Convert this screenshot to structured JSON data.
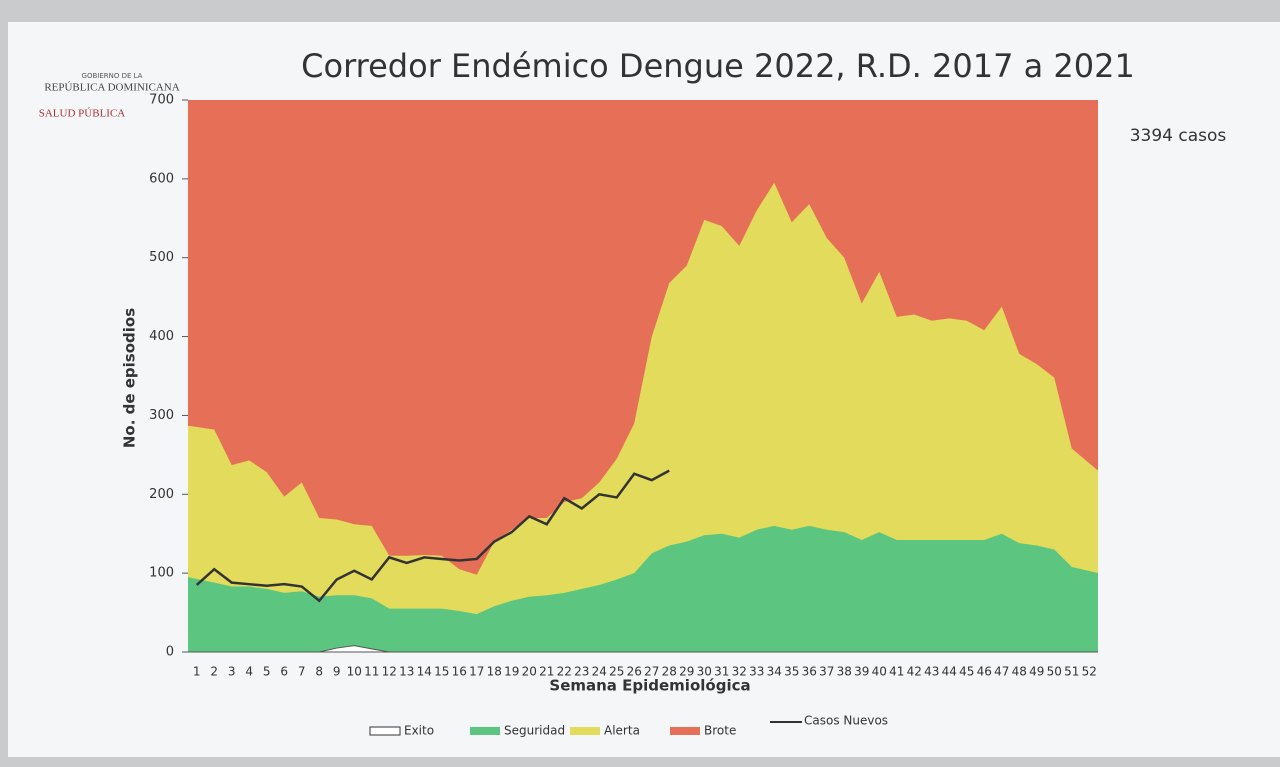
{
  "logo": {
    "line1": "GOBIERNO DE LA",
    "line2": "REPÚBLICA DOMINICANA",
    "line3": "SALUD PÚBLICA"
  },
  "chart_data": {
    "type": "area",
    "title": "Corredor Endémico Dengue 2022, R.D. 2017 a 2021",
    "annotation": "3394 casos",
    "x_label": "Semana Epidemiológica",
    "y_label": "No. de episodios",
    "categories": [
      "1",
      "2",
      "3",
      "4",
      "5",
      "6",
      "7",
      "8",
      "9",
      "10",
      "11",
      "12",
      "13",
      "14",
      "15",
      "16",
      "17",
      "18",
      "19",
      "20",
      "21",
      "22",
      "23",
      "24",
      "25",
      "26",
      "27",
      "28",
      "29",
      "30",
      "31",
      "32",
      "33",
      "34",
      "35",
      "36",
      "37",
      "38",
      "39",
      "40",
      "41",
      "42",
      "43",
      "44",
      "45",
      "46",
      "47",
      "48",
      "49",
      "50",
      "51",
      "52"
    ],
    "ylim": [
      0,
      700
    ],
    "yticks": [
      0,
      100,
      200,
      300,
      400,
      500,
      600,
      700
    ],
    "series": [
      {
        "name": "Brote",
        "color": "#e66f57",
        "style": "area",
        "values": [
          700,
          700,
          700,
          700,
          700,
          700,
          700,
          700,
          700,
          700,
          700,
          700,
          700,
          700,
          700,
          700,
          700,
          700,
          700,
          700,
          700,
          700,
          700,
          700,
          700,
          700,
          700,
          700,
          700,
          700,
          700,
          700,
          700,
          700,
          700,
          700,
          700,
          700,
          700,
          700,
          700,
          700,
          700,
          700,
          700,
          700,
          700,
          700,
          700,
          700,
          700,
          700
        ]
      },
      {
        "name": "Alerta",
        "color": "#e2db5c",
        "style": "area",
        "values": [
          287,
          282,
          237,
          243,
          228,
          197,
          215,
          170,
          168,
          162,
          160,
          122,
          122,
          123,
          122,
          105,
          98,
          140,
          155,
          170,
          170,
          190,
          195,
          215,
          245,
          290,
          400,
          468,
          490,
          548,
          540,
          515,
          560,
          595,
          545,
          568,
          525,
          500,
          442,
          482,
          425,
          428,
          420,
          423,
          420,
          408,
          438,
          378,
          365,
          348,
          258,
          230
        ]
      },
      {
        "name": "Seguridad",
        "color": "#5cc680",
        "style": "area",
        "values": [
          95,
          88,
          83,
          83,
          80,
          75,
          77,
          70,
          72,
          72,
          68,
          55,
          55,
          55,
          55,
          52,
          48,
          58,
          65,
          70,
          72,
          75,
          80,
          85,
          92,
          100,
          125,
          135,
          140,
          148,
          150,
          145,
          155,
          160,
          155,
          160,
          155,
          152,
          142,
          152,
          142,
          142,
          142,
          142,
          142,
          142,
          150,
          138,
          135,
          130,
          108,
          100
        ]
      },
      {
        "name": "Exito",
        "color": "#ffffff",
        "style": "area",
        "values": [
          0,
          0,
          0,
          0,
          0,
          0,
          0,
          0,
          5,
          8,
          4,
          0,
          0,
          0,
          0,
          0,
          0,
          0,
          0,
          0,
          0,
          0,
          0,
          0,
          0,
          0,
          0,
          0,
          0,
          0,
          0,
          0,
          0,
          0,
          0,
          0,
          0,
          0,
          0,
          0,
          0,
          0,
          0,
          0,
          0,
          0,
          0,
          0,
          0,
          0,
          0,
          0
        ]
      },
      {
        "name": "Casos Nuevos",
        "color": "#333333",
        "style": "line",
        "values": [
          85,
          105,
          88,
          86,
          84,
          86,
          83,
          65,
          92,
          103,
          92,
          120,
          113,
          120,
          118,
          116,
          118,
          140,
          152,
          172,
          162,
          195,
          182,
          200,
          196,
          226,
          218,
          230,
          null,
          null,
          null,
          null,
          null,
          null,
          null,
          null,
          null,
          null,
          null,
          null,
          null,
          null,
          null,
          null,
          null,
          null,
          null,
          null,
          null,
          null,
          null,
          null
        ]
      }
    ],
    "legend_order": [
      3,
      2,
      1,
      0,
      4
    ]
  }
}
